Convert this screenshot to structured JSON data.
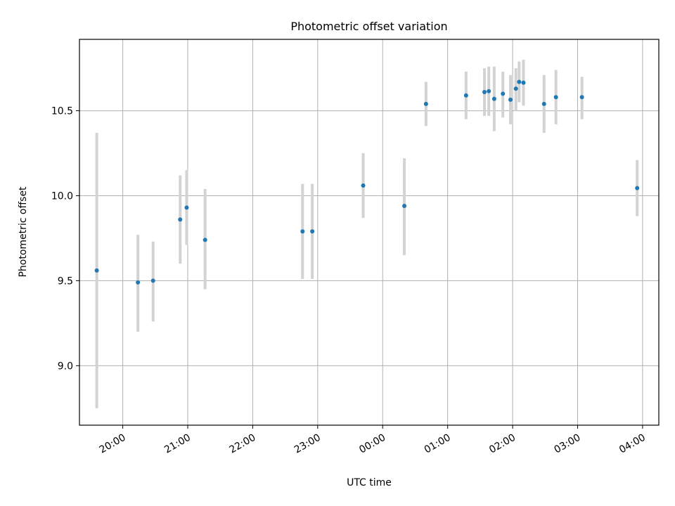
{
  "chart_data": {
    "type": "scatter",
    "title": "Photometric offset variation",
    "xlabel": "UTC time",
    "ylabel": "Photometric offset",
    "x_axis_type": "time",
    "xlim": [
      "2000-01-01T19:20",
      "2000-01-02T04:15"
    ],
    "ylim": [
      8.65,
      10.92
    ],
    "x_ticks": [
      {
        "t": "2000-01-01T20:00",
        "label": "20:00"
      },
      {
        "t": "2000-01-01T21:00",
        "label": "21:00"
      },
      {
        "t": "2000-01-01T22:00",
        "label": "22:00"
      },
      {
        "t": "2000-01-01T23:00",
        "label": "23:00"
      },
      {
        "t": "2000-01-02T00:00",
        "label": "00:00"
      },
      {
        "t": "2000-01-02T01:00",
        "label": "01:00"
      },
      {
        "t": "2000-01-02T02:00",
        "label": "02:00"
      },
      {
        "t": "2000-01-02T03:00",
        "label": "03:00"
      },
      {
        "t": "2000-01-02T04:00",
        "label": "04:00"
      }
    ],
    "y_ticks": [
      {
        "v": 9.0,
        "label": "9.0"
      },
      {
        "v": 9.5,
        "label": "9.5"
      },
      {
        "v": 10.0,
        "label": "10.0"
      },
      {
        "v": 10.5,
        "label": "10.5"
      }
    ],
    "grid": true,
    "marker_color": "#1f77b4",
    "errorbar_color": "#d3d3d3",
    "points": [
      {
        "t": "2000-01-01T19:36",
        "y": 9.56,
        "lo": 8.75,
        "hi": 10.37
      },
      {
        "t": "2000-01-01T20:14",
        "y": 9.49,
        "lo": 9.2,
        "hi": 9.77
      },
      {
        "t": "2000-01-01T20:28",
        "y": 9.5,
        "lo": 9.26,
        "hi": 9.73
      },
      {
        "t": "2000-01-01T20:53",
        "y": 9.86,
        "lo": 9.6,
        "hi": 10.12
      },
      {
        "t": "2000-01-01T20:59",
        "y": 9.93,
        "lo": 9.71,
        "hi": 10.15
      },
      {
        "t": "2000-01-01T21:16",
        "y": 9.74,
        "lo": 9.45,
        "hi": 10.04
      },
      {
        "t": "2000-01-01T22:46",
        "y": 9.79,
        "lo": 9.51,
        "hi": 10.07
      },
      {
        "t": "2000-01-01T22:55",
        "y": 9.79,
        "lo": 9.51,
        "hi": 10.07
      },
      {
        "t": "2000-01-01T23:42",
        "y": 10.06,
        "lo": 9.87,
        "hi": 10.25
      },
      {
        "t": "2000-01-02T00:20",
        "y": 9.94,
        "lo": 9.65,
        "hi": 10.22
      },
      {
        "t": "2000-01-02T00:40",
        "y": 10.54,
        "lo": 10.41,
        "hi": 10.67
      },
      {
        "t": "2000-01-02T01:17",
        "y": 10.59,
        "lo": 10.45,
        "hi": 10.73
      },
      {
        "t": "2000-01-02T01:34",
        "y": 10.61,
        "lo": 10.47,
        "hi": 10.75
      },
      {
        "t": "2000-01-02T01:38",
        "y": 10.615,
        "lo": 10.47,
        "hi": 10.76
      },
      {
        "t": "2000-01-02T01:43",
        "y": 10.57,
        "lo": 10.38,
        "hi": 10.76
      },
      {
        "t": "2000-01-02T01:51",
        "y": 10.6,
        "lo": 10.46,
        "hi": 10.73
      },
      {
        "t": "2000-01-02T01:58",
        "y": 10.565,
        "lo": 10.42,
        "hi": 10.71
      },
      {
        "t": "2000-01-02T02:03",
        "y": 10.63,
        "lo": 10.5,
        "hi": 10.75
      },
      {
        "t": "2000-01-02T02:06",
        "y": 10.67,
        "lo": 10.55,
        "hi": 10.79
      },
      {
        "t": "2000-01-02T02:10",
        "y": 10.665,
        "lo": 10.53,
        "hi": 10.8
      },
      {
        "t": "2000-01-02T02:29",
        "y": 10.54,
        "lo": 10.37,
        "hi": 10.71
      },
      {
        "t": "2000-01-02T02:40",
        "y": 10.58,
        "lo": 10.42,
        "hi": 10.74
      },
      {
        "t": "2000-01-02T03:04",
        "y": 10.58,
        "lo": 10.45,
        "hi": 10.7
      },
      {
        "t": "2000-01-02T03:55",
        "y": 10.045,
        "lo": 9.88,
        "hi": 10.21
      }
    ]
  }
}
